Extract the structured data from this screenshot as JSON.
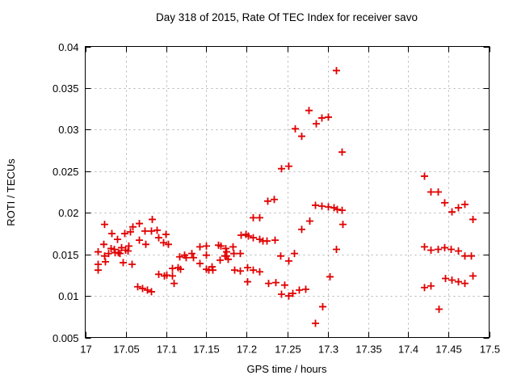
{
  "chart_data": {
    "type": "scatter",
    "title": "Day 318 of 2015, Rate Of TEC Index for receiver savo",
    "xlabel": "GPS time / hours",
    "ylabel": "ROTI / TECUs",
    "xlim": [
      17,
      17.5
    ],
    "ylim": [
      0.005,
      0.04
    ],
    "xticks": [
      17,
      17.05,
      17.1,
      17.15,
      17.2,
      17.25,
      17.3,
      17.35,
      17.4,
      17.45,
      17.5
    ],
    "xtick_labels": [
      "17",
      "17.05",
      "17.1",
      "17.15",
      "17.2",
      "17.25",
      "17.3",
      "17.35",
      "17.4",
      "17.45",
      "17.5"
    ],
    "yticks": [
      0.005,
      0.01,
      0.015,
      0.02,
      0.025,
      0.03,
      0.035,
      0.04
    ],
    "ytick_labels": [
      "0.005",
      "0.01",
      "0.015",
      "0.02",
      "0.025",
      "0.03",
      "0.035",
      "0.04"
    ],
    "grid": true,
    "legend_position": "none",
    "marker": "plus",
    "marker_color": "#e10000",
    "grid_color": "#b3b3b3",
    "axis_color": "#000000",
    "background_color": "#ffffff",
    "series": [
      {
        "name": "ROTI",
        "points": [
          [
            17.016,
            0.0153
          ],
          [
            17.016,
            0.0138
          ],
          [
            17.016,
            0.0131
          ],
          [
            17.023,
            0.0162
          ],
          [
            17.024,
            0.0186
          ],
          [
            17.024,
            0.0148
          ],
          [
            17.025,
            0.0141
          ],
          [
            17.029,
            0.0151
          ],
          [
            17.032,
            0.0157
          ],
          [
            17.033,
            0.0175
          ],
          [
            17.036,
            0.0156
          ],
          [
            17.037,
            0.0152
          ],
          [
            17.04,
            0.0168
          ],
          [
            17.041,
            0.0152
          ],
          [
            17.043,
            0.0151
          ],
          [
            17.045,
            0.0158
          ],
          [
            17.047,
            0.014
          ],
          [
            17.049,
            0.0175
          ],
          [
            17.05,
            0.0155
          ],
          [
            17.053,
            0.0154
          ],
          [
            17.054,
            0.016
          ],
          [
            17.056,
            0.0177
          ],
          [
            17.058,
            0.0138
          ],
          [
            17.059,
            0.0183
          ],
          [
            17.065,
            0.0111
          ],
          [
            17.067,
            0.0187
          ],
          [
            17.067,
            0.0167
          ],
          [
            17.071,
            0.0109
          ],
          [
            17.074,
            0.0178
          ],
          [
            17.075,
            0.0162
          ],
          [
            17.077,
            0.0107
          ],
          [
            17.082,
            0.0178
          ],
          [
            17.082,
            0.0105
          ],
          [
            17.083,
            0.0192
          ],
          [
            17.089,
            0.0179
          ],
          [
            17.091,
            0.017
          ],
          [
            17.091,
            0.0126
          ],
          [
            17.097,
            0.0164
          ],
          [
            17.098,
            0.0124
          ],
          [
            17.1,
            0.0174
          ],
          [
            17.101,
            0.0125
          ],
          [
            17.103,
            0.0162
          ],
          [
            17.108,
            0.0133
          ],
          [
            17.108,
            0.0124
          ],
          [
            17.11,
            0.0115
          ],
          [
            17.115,
            0.0134
          ],
          [
            17.118,
            0.0132
          ],
          [
            17.117,
            0.0147
          ],
          [
            17.123,
            0.0149
          ],
          [
            17.125,
            0.0146
          ],
          [
            17.132,
            0.0151
          ],
          [
            17.134,
            0.0146
          ],
          [
            17.142,
            0.0159
          ],
          [
            17.142,
            0.0139
          ],
          [
            17.15,
            0.016
          ],
          [
            17.15,
            0.0149
          ],
          [
            17.15,
            0.0132
          ],
          [
            17.153,
            0.0131
          ],
          [
            17.157,
            0.0135
          ],
          [
            17.158,
            0.0131
          ],
          [
            17.165,
            0.0161
          ],
          [
            17.167,
            0.0143
          ],
          [
            17.168,
            0.016
          ],
          [
            17.173,
            0.0148
          ],
          [
            17.174,
            0.0157
          ],
          [
            17.175,
            0.0153
          ],
          [
            17.175,
            0.0148
          ],
          [
            17.177,
            0.0144
          ],
          [
            17.183,
            0.0159
          ],
          [
            17.184,
            0.0151
          ],
          [
            17.185,
            0.0131
          ],
          [
            17.192,
            0.0151
          ],
          [
            17.192,
            0.013
          ],
          [
            17.193,
            0.0173
          ],
          [
            17.199,
            0.0174
          ],
          [
            17.201,
            0.0134
          ],
          [
            17.201,
            0.0117
          ],
          [
            17.202,
            0.0172
          ],
          [
            17.208,
            0.0194
          ],
          [
            17.208,
            0.017
          ],
          [
            17.208,
            0.0131
          ],
          [
            17.216,
            0.0194
          ],
          [
            17.216,
            0.0168
          ],
          [
            17.216,
            0.0129
          ],
          [
            17.22,
            0.0166
          ],
          [
            17.225,
            0.0166
          ],
          [
            17.226,
            0.0214
          ],
          [
            17.227,
            0.0115
          ],
          [
            17.234,
            0.0216
          ],
          [
            17.235,
            0.0167
          ],
          [
            17.236,
            0.0116
          ],
          [
            17.242,
            0.0148
          ],
          [
            17.243,
            0.0253
          ],
          [
            17.243,
            0.0102
          ],
          [
            17.247,
            0.0113
          ],
          [
            17.252,
            0.0256
          ],
          [
            17.252,
            0.0142
          ],
          [
            17.252,
            0.01
          ],
          [
            17.257,
            0.0103
          ],
          [
            17.259,
            0.0151
          ],
          [
            17.265,
            0.0107
          ],
          [
            17.273,
            0.0108
          ],
          [
            17.26,
            0.0301
          ],
          [
            17.268,
            0.0292
          ],
          [
            17.268,
            0.018
          ],
          [
            17.277,
            0.0323
          ],
          [
            17.278,
            0.019
          ],
          [
            17.285,
            0.0209
          ],
          [
            17.285,
            0.0067
          ],
          [
            17.286,
            0.0307
          ],
          [
            17.293,
            0.0314
          ],
          [
            17.293,
            0.0208
          ],
          [
            17.294,
            0.0087
          ],
          [
            17.301,
            0.0315
          ],
          [
            17.301,
            0.0207
          ],
          [
            17.303,
            0.0123
          ],
          [
            17.308,
            0.0206
          ],
          [
            17.311,
            0.0371
          ],
          [
            17.311,
            0.0156
          ],
          [
            17.312,
            0.0204
          ],
          [
            17.318,
            0.0273
          ],
          [
            17.318,
            0.0203
          ],
          [
            17.319,
            0.0186
          ],
          [
            17.42,
            0.0244
          ],
          [
            17.42,
            0.0159
          ],
          [
            17.42,
            0.011
          ],
          [
            17.428,
            0.0225
          ],
          [
            17.428,
            0.0155
          ],
          [
            17.428,
            0.0112
          ],
          [
            17.437,
            0.0225
          ],
          [
            17.437,
            0.0156
          ],
          [
            17.438,
            0.0084
          ],
          [
            17.445,
            0.0212
          ],
          [
            17.445,
            0.0158
          ],
          [
            17.446,
            0.0121
          ],
          [
            17.453,
            0.0156
          ],
          [
            17.454,
            0.0201
          ],
          [
            17.454,
            0.0119
          ],
          [
            17.462,
            0.0206
          ],
          [
            17.462,
            0.0154
          ],
          [
            17.462,
            0.0117
          ],
          [
            17.47,
            0.021
          ],
          [
            17.47,
            0.0148
          ],
          [
            17.47,
            0.0115
          ],
          [
            17.478,
            0.0148
          ],
          [
            17.48,
            0.0192
          ],
          [
            17.48,
            0.0124
          ]
        ]
      }
    ]
  }
}
